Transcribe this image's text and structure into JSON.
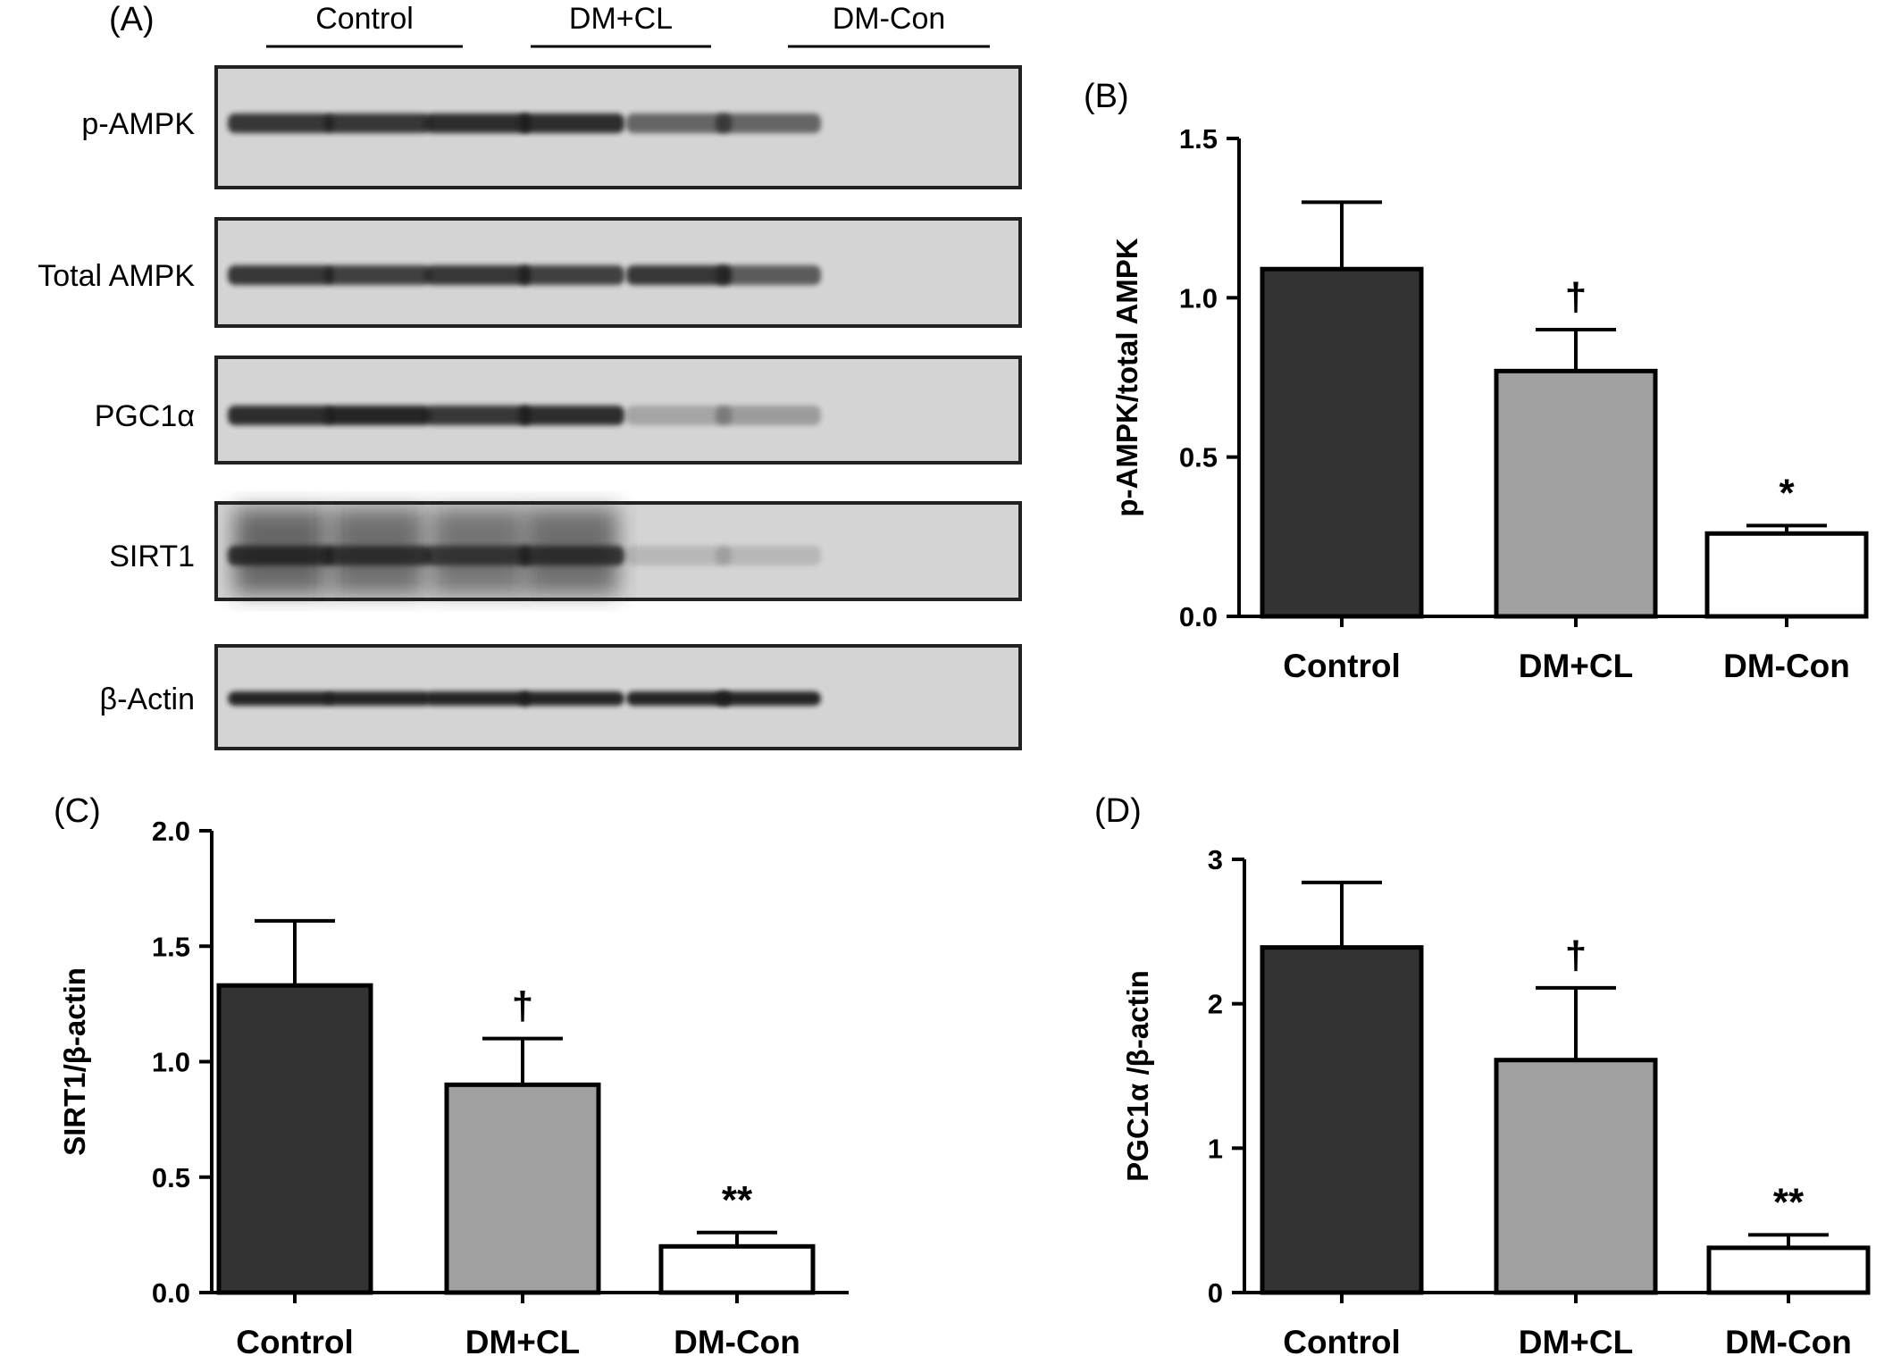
{
  "figure": {
    "panel_a": {
      "letter": "(A)",
      "groups": [
        "Control",
        "DM+CL",
        "DM-Con"
      ],
      "lanes_per_group": 2,
      "blots": [
        {
          "label": "p-AMPK",
          "lane_intensity": [
            0.85,
            0.85,
            0.9,
            0.9,
            0.6,
            0.6
          ]
        },
        {
          "label": "Total AMPK",
          "lane_intensity": [
            0.85,
            0.8,
            0.85,
            0.8,
            0.85,
            0.65
          ]
        },
        {
          "label": "PGC1α",
          "lane_intensity": [
            0.9,
            0.95,
            0.85,
            0.9,
            0.25,
            0.3
          ]
        },
        {
          "label": "SIRT1",
          "lane_intensity": [
            0.85,
            0.8,
            0.75,
            0.8,
            0.15,
            0.15
          ]
        },
        {
          "label": "β-Actin",
          "lane_intensity": [
            0.95,
            0.95,
            0.95,
            0.95,
            0.95,
            0.95
          ]
        }
      ]
    },
    "colors": {
      "control_bar": "#333333",
      "dmcl_bar": "#a0a0a0",
      "dmcon_bar": "#ffffff",
      "blot_bg": "#d4d4d4",
      "band": "#1a1a1a"
    }
  },
  "chart_data": [
    {
      "panel": "(B)",
      "type": "bar",
      "categories": [
        "Control",
        "DM+CL",
        "DM-Con"
      ],
      "values": [
        1.09,
        0.77,
        0.26
      ],
      "errors": [
        0.21,
        0.13,
        0.025
      ],
      "significance": [
        "",
        "†",
        "*"
      ],
      "ylabel": "p-AMPK/total AMPK",
      "ylim": [
        0,
        1.5
      ],
      "yticks": [
        "0.0",
        "0.5",
        "1.0",
        "1.5"
      ],
      "ytick_values": [
        0,
        0.5,
        1.0,
        1.5
      ]
    },
    {
      "panel": "(C)",
      "type": "bar",
      "categories": [
        "Control",
        "DM+CL",
        "DM-Con"
      ],
      "values": [
        1.33,
        0.9,
        0.2
      ],
      "errors": [
        0.28,
        0.2,
        0.06
      ],
      "significance": [
        "",
        "†",
        "**"
      ],
      "ylabel": "SIRT1/β-actin",
      "ylim": [
        0,
        2.0
      ],
      "yticks": [
        "0.0",
        "0.5",
        "1.0",
        "1.5",
        "2.0"
      ],
      "ytick_values": [
        0,
        0.5,
        1.0,
        1.5,
        2.0
      ]
    },
    {
      "panel": "(D)",
      "type": "bar",
      "categories": [
        "Control",
        "DM+CL",
        "DM-Con"
      ],
      "values": [
        2.39,
        1.61,
        0.31
      ],
      "errors": [
        0.45,
        0.5,
        0.09
      ],
      "significance": [
        "",
        "†",
        "**"
      ],
      "ylabel": "PGC1α /β-actin",
      "ylim": [
        0,
        3
      ],
      "yticks": [
        "0",
        "1",
        "2",
        "3"
      ],
      "ytick_values": [
        0,
        1,
        2,
        3
      ]
    }
  ]
}
